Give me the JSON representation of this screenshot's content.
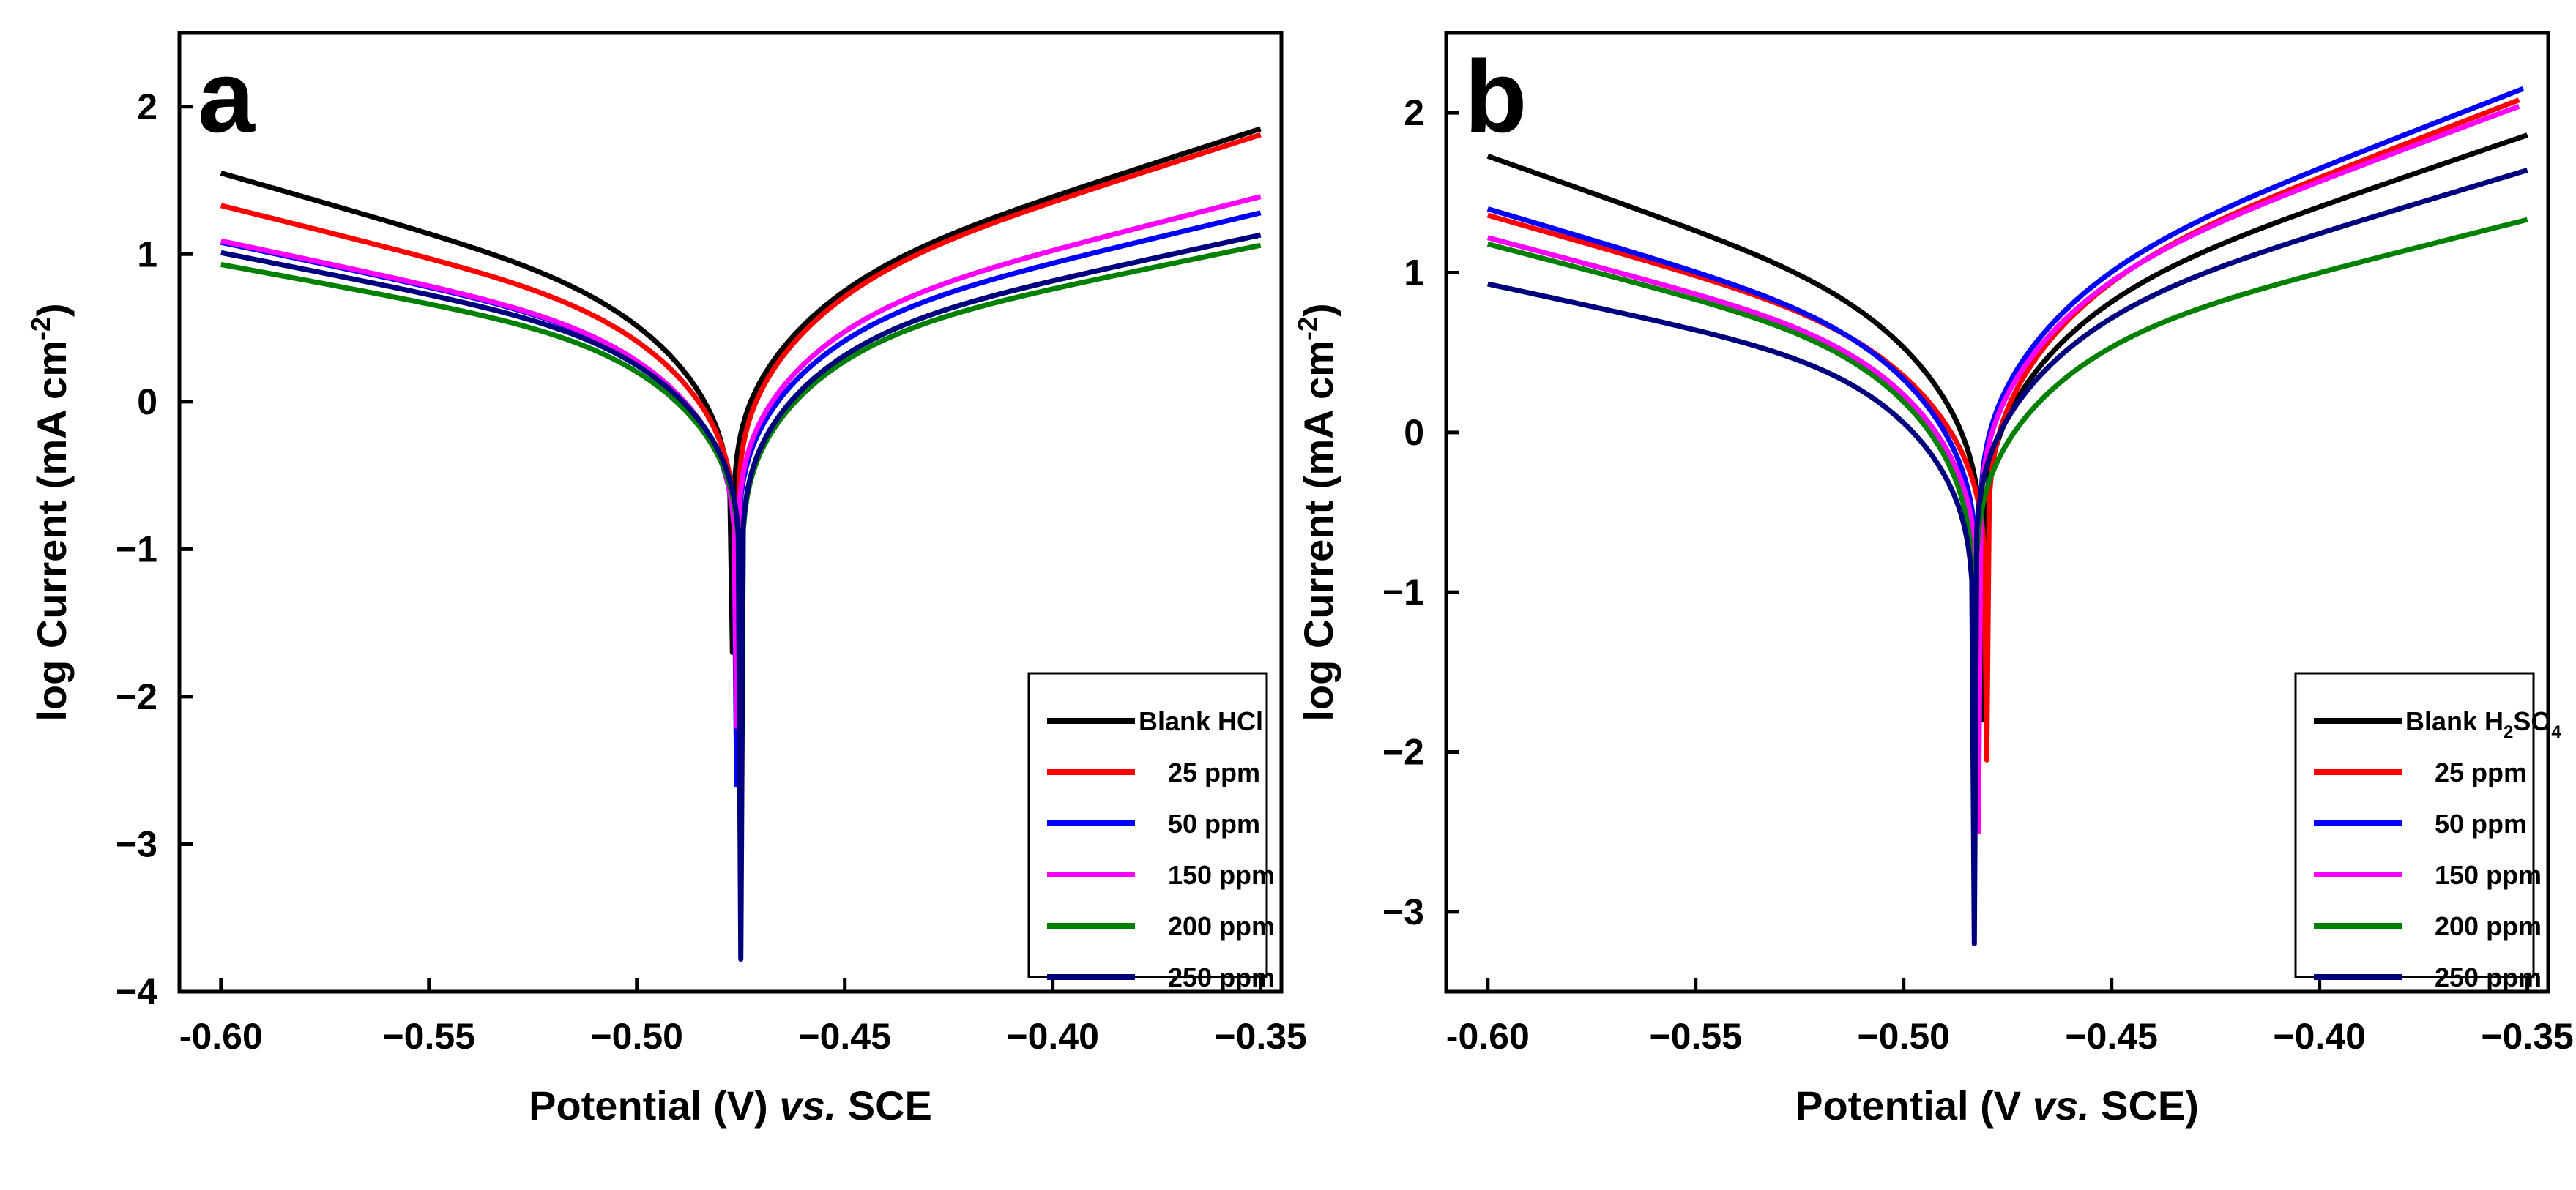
{
  "chart_data": [
    {
      "type": "line",
      "panel_label": "a",
      "xlabel_parts": [
        "Potential (V) ",
        "vs.",
        " SCE"
      ],
      "ylabel": "log Current (mA cm",
      "ylabel_sup": "-2",
      "ylabel_close": ")",
      "xlim": [
        -0.61,
        -0.345
      ],
      "ylim": [
        -4,
        2.5
      ],
      "x_ticks": [
        -0.6,
        -0.55,
        -0.5,
        -0.45,
        -0.4,
        -0.35
      ],
      "x_tick_labels": [
        "-0.60",
        "−0.55",
        "−0.50",
        "−0.45",
        "−0.40",
        "−0.35"
      ],
      "y_ticks": [
        -4,
        -3,
        -2,
        -1,
        0,
        1,
        2
      ],
      "y_tick_labels": [
        "−4",
        "−3",
        "−2",
        "−1",
        "0",
        "1",
        "2"
      ],
      "series": [
        {
          "name": "Blank HCl",
          "color": "#000000",
          "ecorr": -0.477,
          "min": -1.7,
          "start": -0.6,
          "end": -0.35,
          "y_start": 1.57,
          "y_end": 1.87
        },
        {
          "name": "25 ppm",
          "color": "#ff0000",
          "ecorr": -0.476,
          "min": -2.0,
          "start": -0.6,
          "end": -0.35,
          "y_start": 1.35,
          "y_end": 1.83
        },
        {
          "name": "50 ppm",
          "color": "#0000ff",
          "ecorr": -0.476,
          "min": -2.6,
          "start": -0.6,
          "end": -0.35,
          "y_start": 1.1,
          "y_end": 1.3
        },
        {
          "name": "150 ppm",
          "color": "#ff00ff",
          "ecorr": -0.476,
          "min": -2.2,
          "start": -0.6,
          "end": -0.35,
          "y_start": 1.11,
          "y_end": 1.41
        },
        {
          "name": "200 ppm",
          "color": "#008000",
          "ecorr": -0.475,
          "min": -3.0,
          "start": -0.6,
          "end": -0.35,
          "y_start": 0.95,
          "y_end": 1.08
        },
        {
          "name": "250 ppm",
          "color": "#00007f",
          "ecorr": -0.475,
          "min": -3.78,
          "start": -0.6,
          "end": -0.35,
          "y_start": 1.03,
          "y_end": 1.15
        }
      ],
      "legend": {
        "position": "bottom-right",
        "entries": [
          {
            "label": "Blank HCl",
            "sub": "",
            "tail": ""
          },
          {
            "label": "25 ppm",
            "sub": "",
            "tail": ""
          },
          {
            "label": "50 ppm",
            "sub": "",
            "tail": ""
          },
          {
            "label": "150 ppm",
            "sub": "",
            "tail": ""
          },
          {
            "label": "200 ppm",
            "sub": "",
            "tail": ""
          },
          {
            "label": "250 ppm",
            "sub": "",
            "tail": ""
          }
        ]
      }
    },
    {
      "type": "line",
      "panel_label": "b",
      "xlabel_parts": [
        "Potential (V ",
        "vs.",
        " SCE)"
      ],
      "ylabel": "log Current (mA cm",
      "ylabel_sup": "-2",
      "ylabel_close": ")",
      "xlim": [
        -0.61,
        -0.345
      ],
      "ylim": [
        -3.5,
        2.5
      ],
      "x_ticks": [
        -0.6,
        -0.55,
        -0.5,
        -0.45,
        -0.4,
        -0.35
      ],
      "x_tick_labels": [
        "-0.60",
        "−0.55",
        "−0.50",
        "−0.45",
        "−0.40",
        "−0.35"
      ],
      "y_ticks": [
        -3,
        -2,
        -1,
        0,
        1,
        2
      ],
      "y_tick_labels": [
        "−3",
        "−2",
        "−1",
        "0",
        "1",
        "2"
      ],
      "series": [
        {
          "name": "Blank H2SO4",
          "color": "#000000",
          "ecorr": -0.481,
          "min": -1.8,
          "start": -0.6,
          "end": -0.35,
          "y_start": 1.75,
          "y_end": 1.88
        },
        {
          "name": "25 ppm",
          "color": "#ff0000",
          "ecorr": -0.48,
          "min": -2.05,
          "start": -0.6,
          "end": -0.352,
          "y_start": 1.38,
          "y_end": 2.1
        },
        {
          "name": "50 ppm",
          "color": "#0000ff",
          "ecorr": -0.482,
          "min": -2.3,
          "start": -0.6,
          "end": -0.351,
          "y_start": 1.42,
          "y_end": 2.17
        },
        {
          "name": "150 ppm",
          "color": "#ff00ff",
          "ecorr": -0.482,
          "min": -2.5,
          "start": -0.6,
          "end": -0.352,
          "y_start": 1.24,
          "y_end": 2.06
        },
        {
          "name": "200 ppm",
          "color": "#008000",
          "ecorr": -0.483,
          "min": -2.8,
          "start": -0.6,
          "end": -0.35,
          "y_start": 1.2,
          "y_end": 1.35
        },
        {
          "name": "250 ppm",
          "color": "#00007f",
          "ecorr": -0.483,
          "min": -3.2,
          "start": -0.6,
          "end": -0.35,
          "y_start": 0.95,
          "y_end": 1.66
        }
      ],
      "legend": {
        "position": "bottom-right",
        "entries": [
          {
            "label": "Blank H",
            "sub": "2",
            "tail": "SO",
            "sub2": "4"
          },
          {
            "label": "25 ppm",
            "sub": "",
            "tail": ""
          },
          {
            "label": "50 ppm",
            "sub": "",
            "tail": ""
          },
          {
            "label": "150 ppm",
            "sub": "",
            "tail": ""
          },
          {
            "label": "200 ppm",
            "sub": "",
            "tail": ""
          },
          {
            "label": "250 ppm",
            "sub": "",
            "tail": ""
          }
        ]
      }
    }
  ]
}
